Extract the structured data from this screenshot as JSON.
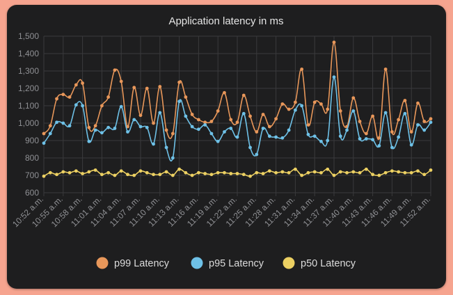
{
  "chart_data": {
    "type": "line",
    "title": "Application latency in ms",
    "xlabel": "",
    "ylabel": "",
    "ylim": [
      600,
      1500
    ],
    "yticks": [
      "600",
      "700",
      "800",
      "900",
      "1,000",
      "1,100",
      "1,200",
      "1,300",
      "1,400",
      "1,500"
    ],
    "ytick_values": [
      600,
      700,
      800,
      900,
      1000,
      1100,
      1200,
      1300,
      1400,
      1500
    ],
    "x_tick_labels": [
      "10:52 a.m.",
      "10:55 a.m.",
      "10:58 a.m.",
      "11:01 a.m.",
      "11:04 a.m.",
      "11:07 a.m.",
      "11:10 a.m.",
      "11:13 a.m.",
      "11:16 a.m.",
      "11:19 a.m.",
      "11:22 a.m.",
      "11:25 a.m.",
      "11:28 a.m.",
      "11:31 a.m.",
      "11:34 a.m.",
      "11:37 a.m.",
      "11:40 a.m.",
      "11:43 a.m.",
      "11:46 a.m.",
      "11:49 a.m.",
      "11:52 a.m."
    ],
    "grid": true,
    "legend_position": "bottom",
    "series": [
      {
        "name": "p99 Latency",
        "color": "#e8975a",
        "values": [
          940,
          985,
          1140,
          1165,
          1150,
          1220,
          1230,
          975,
          985,
          1100,
          1150,
          1305,
          1240,
          980,
          1205,
          1045,
          1200,
          1000,
          1210,
          960,
          940,
          1235,
          1150,
          1050,
          1020,
          1005,
          1010,
          1070,
          1175,
          1020,
          1005,
          1160,
          1040,
          950,
          1050,
          980,
          1025,
          1110,
          1080,
          1120,
          1310,
          990,
          1120,
          1110,
          1080,
          1465,
          1070,
          980,
          1145,
          1010,
          940,
          1040,
          915,
          1310,
          950,
          1020,
          1130,
          950,
          1115,
          1010,
          1025
        ]
      },
      {
        "name": "p95 Latency",
        "color": "#6ec1e7",
        "values": [
          885,
          940,
          1005,
          1000,
          985,
          1105,
          1100,
          895,
          960,
          945,
          975,
          970,
          1095,
          950,
          1020,
          980,
          975,
          880,
          1060,
          860,
          800,
          1125,
          1040,
          980,
          965,
          990,
          940,
          895,
          950,
          970,
          920,
          1055,
          860,
          820,
          970,
          925,
          920,
          915,
          960,
          1075,
          1100,
          935,
          925,
          895,
          900,
          1265,
          925,
          960,
          1070,
          910,
          910,
          905,
          870,
          1060,
          860,
          920,
          1055,
          875,
          990,
          960,
          1005
        ]
      },
      {
        "name": "p50 Latency",
        "color": "#ecd062",
        "values": [
          695,
          715,
          705,
          720,
          715,
          725,
          710,
          720,
          730,
          705,
          715,
          700,
          725,
          705,
          700,
          725,
          715,
          705,
          705,
          720,
          700,
          735,
          715,
          700,
          715,
          710,
          705,
          715,
          715,
          710,
          710,
          705,
          695,
          715,
          710,
          725,
          715,
          720,
          715,
          735,
          700,
          715,
          720,
          715,
          735,
          700,
          720,
          715,
          720,
          715,
          735,
          705,
          700,
          715,
          725,
          720,
          715,
          715,
          725,
          705,
          730
        ]
      }
    ]
  }
}
